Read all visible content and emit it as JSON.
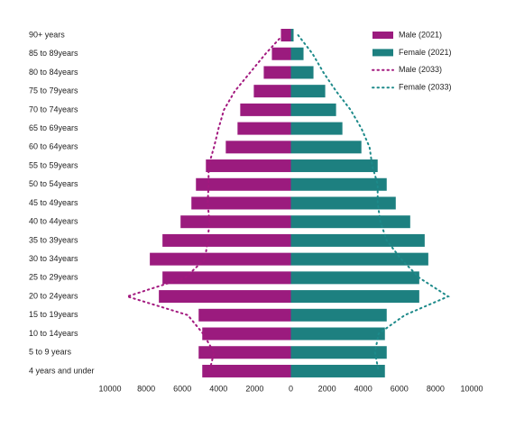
{
  "chart_data": {
    "type": "pyramid",
    "categories": [
      "90+ years",
      "85 to 89years",
      "80 to 84years",
      "75 to 79years",
      "70 to 74years",
      "65 to 69years",
      "60 to 64years",
      "55 to 59years",
      "50 to 54years",
      "45 to 49years",
      "40 to 44years",
      "35 to 39years",
      "30 to 34years",
      "25 to 29years",
      "20 to 24years",
      "15 to 19years",
      "10 to 14years",
      "5 to 9 years",
      "4 years and under"
    ],
    "series": [
      {
        "name": "Male (2021)",
        "color": "#9b1b7e",
        "mark": "bar",
        "values": [
          -550,
          -1050,
          -1500,
          -2050,
          -2800,
          -2950,
          -3600,
          -4700,
          -5250,
          -5500,
          -6100,
          -7100,
          -7800,
          -7100,
          -7300,
          -5100,
          -4900,
          -5100,
          -4900
        ]
      },
      {
        "name": "Female (2021)",
        "color": "#1d8080",
        "mark": "bar",
        "values": [
          150,
          700,
          1250,
          1900,
          2500,
          2850,
          3900,
          4800,
          5300,
          5800,
          6600,
          7400,
          7600,
          7100,
          7100,
          5300,
          5200,
          5300,
          5200
        ]
      },
      {
        "name": "Male (2033)",
        "color": "#a3197f",
        "mark": "dotted-line",
        "values": [
          -450,
          -1400,
          -2250,
          -3100,
          -3700,
          -4000,
          -4250,
          -4550,
          -4550,
          -4600,
          -4500,
          -4600,
          -4750,
          -5850,
          -9050,
          -5700,
          -4850,
          -4250,
          -4500
        ]
      },
      {
        "name": "Female (2033)",
        "color": "#1d8a8a",
        "mark": "dotted-line",
        "values": [
          400,
          1200,
          1800,
          2500,
          3300,
          3900,
          4350,
          4500,
          4800,
          4800,
          4950,
          5300,
          6100,
          7100,
          8700,
          6300,
          4850,
          4650,
          4850
        ]
      }
    ],
    "xlim": [
      -10000,
      10000
    ],
    "xticks": [
      {
        "value": -10000,
        "label": "10000"
      },
      {
        "value": -8000,
        "label": "8000"
      },
      {
        "value": -6000,
        "label": "6000"
      },
      {
        "value": -4000,
        "label": "4000"
      },
      {
        "value": -2000,
        "label": "2000"
      },
      0,
      2000,
      4000,
      6000,
      8000,
      10000
    ],
    "legend": "top-right"
  }
}
